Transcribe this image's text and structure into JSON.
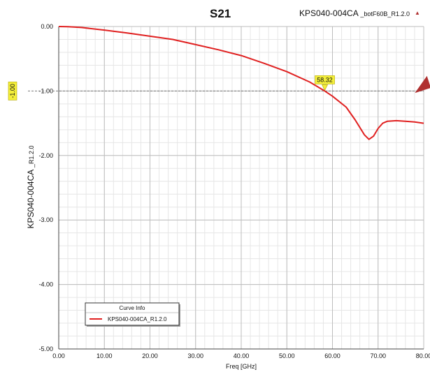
{
  "header": {
    "title": "S21",
    "note_main": "KPS040-004CA",
    "note_sub": "_botF60B_R1.2.0"
  },
  "axes": {
    "ylabel_main": "KPS040-004CA",
    "ylabel_sub": "_R1.2.0",
    "xlabel": "Freq [GHz]"
  },
  "legend": {
    "title": "Curve Info",
    "entry": "KPS040-004CA_R1.2.0"
  },
  "marker": {
    "x_label": "58.32",
    "y_label": "-1.00"
  },
  "chart_data": {
    "type": "line",
    "title": "S21",
    "xlabel": "Freq [GHz]",
    "ylabel": "KPS040-004CA _R1.2.0",
    "xlim": [
      0,
      80
    ],
    "ylim": [
      -5,
      0
    ],
    "xticks": [
      "0.00",
      "10.00",
      "20.00",
      "30.00",
      "40.00",
      "50.00",
      "60.00",
      "70.00",
      "80.00"
    ],
    "yticks": [
      "0.00",
      "-1.00",
      "-2.00",
      "-3.00",
      "-4.00",
      "-5.00"
    ],
    "grid": true,
    "legend_position": "bottom-left",
    "reference_line_y": -1.0,
    "marker": {
      "x": 58.32,
      "y": -1.0,
      "label": "58.32"
    },
    "series": [
      {
        "name": "KPS040-004CA_R1.2.0",
        "color": "#e02020",
        "x": [
          0,
          2,
          5,
          10,
          15,
          20,
          25,
          30,
          35,
          40,
          45,
          50,
          55,
          58.32,
          60,
          63,
          65,
          67,
          68,
          69,
          70,
          71,
          72,
          74,
          76,
          78,
          80
        ],
        "y": [
          0,
          -0.002,
          -0.015,
          -0.055,
          -0.1,
          -0.15,
          -0.2,
          -0.28,
          -0.36,
          -0.45,
          -0.57,
          -0.7,
          -0.86,
          -1.0,
          -1.08,
          -1.25,
          -1.45,
          -1.68,
          -1.75,
          -1.7,
          -1.58,
          -1.5,
          -1.47,
          -1.46,
          -1.47,
          -1.48,
          -1.5
        ]
      }
    ]
  }
}
